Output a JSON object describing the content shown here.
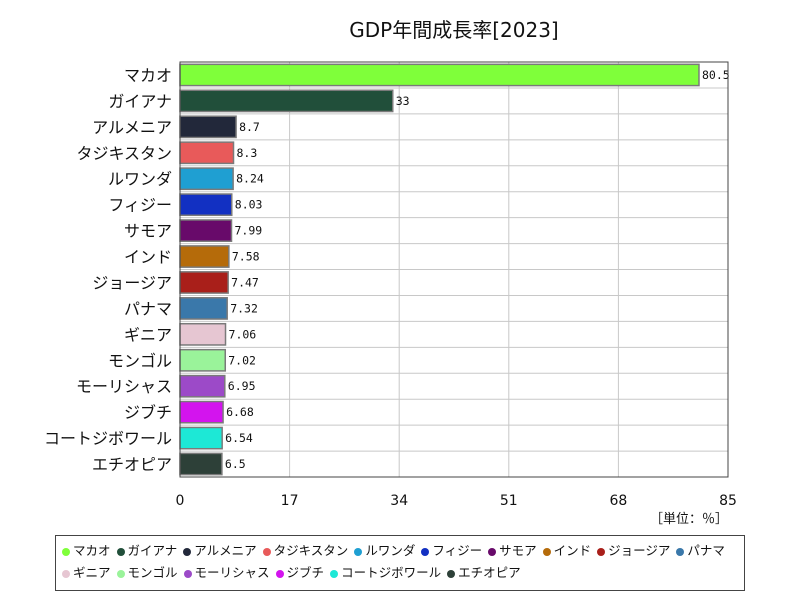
{
  "chart_data": {
    "type": "bar",
    "orientation": "horizontal",
    "title": "GDP年間成長率[2023]",
    "unit_label": "［単位：％］",
    "categories": [
      "マカオ",
      "ガイアナ",
      "アルメニア",
      "タジキスタン",
      "ルワンダ",
      "フィジー",
      "サモア",
      "インド",
      "ジョージア",
      "パナマ",
      "ギニア",
      "モンゴル",
      "モーリシャス",
      "ジブチ",
      "コートジボワール",
      "エチオピア"
    ],
    "values": [
      80.5,
      33,
      8.7,
      8.3,
      8.24,
      8.03,
      7.99,
      7.58,
      7.47,
      7.32,
      7.06,
      7.02,
      6.95,
      6.68,
      6.54,
      6.5
    ],
    "value_labels": [
      "80.5",
      "33",
      "8.7",
      "8.3",
      "8.24",
      "8.03",
      "7.99",
      "7.58",
      "7.47",
      "7.32",
      "7.06",
      "7.02",
      "6.95",
      "6.68",
      "6.54",
      "6.5"
    ],
    "colors": [
      "#7fff3a",
      "#214f3a",
      "#22283a",
      "#e85a5a",
      "#1f9fd2",
      "#1230c2",
      "#680a6a",
      "#b56b0a",
      "#a91f1a",
      "#3a78aa",
      "#e6c6d2",
      "#9af39a",
      "#9c4ac8",
      "#d314ee",
      "#1de8d6",
      "#2d4038"
    ],
    "xlim": [
      0,
      85
    ],
    "x_ticks": [
      "0",
      "17",
      "34",
      "51",
      "68",
      "85"
    ],
    "grid": true,
    "legend_position": "bottom"
  }
}
